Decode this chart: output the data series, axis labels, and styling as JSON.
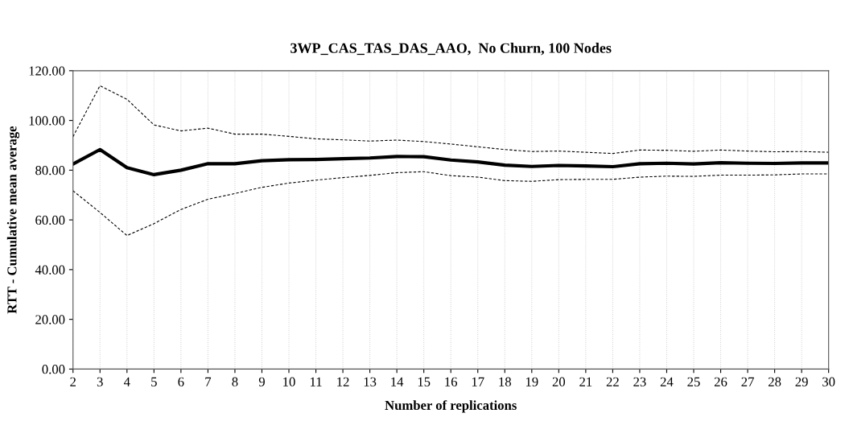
{
  "chart_data": {
    "type": "line",
    "title": "3WP_CAS_TAS_DAS_AAO,  No Churn, 100 Nodes",
    "xlabel": "Number of replications",
    "ylabel": "RTT - Cumulative mean average",
    "x": [
      2,
      3,
      4,
      5,
      6,
      7,
      8,
      9,
      10,
      11,
      12,
      13,
      14,
      15,
      16,
      17,
      18,
      19,
      20,
      21,
      22,
      23,
      24,
      25,
      26,
      27,
      28,
      29,
      30
    ],
    "series": [
      {
        "color": "#000000",
        "line_style": "dashed",
        "values": [
          93.5,
          114,
          108.5,
          98.2,
          95.8,
          96.9,
          94.5,
          94.5,
          93.6,
          92.6,
          92.2,
          91.7,
          92.1,
          91.5,
          90.5,
          89.4,
          88.3,
          87.5,
          87.7,
          87.2,
          86.7,
          88.1,
          88.0,
          87.6,
          88.1,
          87.7,
          87.4,
          87.5,
          87.2
        ]
      },
      {
        "color": "#000000",
        "line_style": "solid",
        "values": [
          82.5,
          88.3,
          81,
          78.2,
          80,
          82.6,
          82.6,
          83.8,
          84.2,
          84.3,
          84.6,
          84.9,
          85.5,
          85.4,
          84.1,
          83.3,
          82,
          81.5,
          81.9,
          81.7,
          81.4,
          82.6,
          82.8,
          82.5,
          83,
          82.8,
          82.7,
          82.9,
          82.9
        ]
      },
      {
        "color": "#000000",
        "line_style": "dashed",
        "values": [
          71.7,
          63,
          53.7,
          58.5,
          64.2,
          68.3,
          70.6,
          73.1,
          74.8,
          76,
          77,
          77.9,
          79,
          79.4,
          77.8,
          77.2,
          75.8,
          75.5,
          76.2,
          76.3,
          76.3,
          77.2,
          77.6,
          77.5,
          78.0,
          78.0,
          78.1,
          78.5,
          78.5
        ]
      }
    ],
    "xlim": [
      2,
      30
    ],
    "xticks": [
      2,
      3,
      4,
      5,
      6,
      7,
      8,
      9,
      10,
      11,
      12,
      13,
      14,
      15,
      16,
      17,
      18,
      19,
      20,
      21,
      22,
      23,
      24,
      25,
      26,
      27,
      28,
      29,
      30
    ],
    "ylim": [
      0,
      120
    ],
    "yticks": [
      {
        "value": 0,
        "label": "0.00"
      },
      {
        "value": 20,
        "label": "20.00"
      },
      {
        "value": 40,
        "label": "40.00"
      },
      {
        "value": 60,
        "label": "60.00"
      },
      {
        "value": 80,
        "label": "80.00"
      },
      {
        "value": 100,
        "label": "100.00"
      },
      {
        "value": 120,
        "label": "120.00"
      }
    ],
    "grid": "x",
    "legend": false,
    "marker": "none"
  }
}
